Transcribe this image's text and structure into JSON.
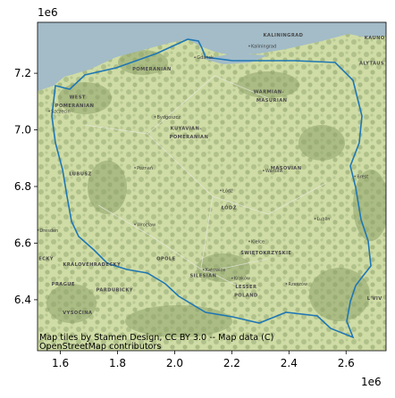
{
  "map": {
    "x_offset_label": "1e6",
    "y_offset_label": "1e6",
    "x_ticks": [
      {
        "value": 1.6,
        "label": "1.6"
      },
      {
        "value": 1.8,
        "label": "1.8"
      },
      {
        "value": 2.0,
        "label": "2.0"
      },
      {
        "value": 2.2,
        "label": "2.2"
      },
      {
        "value": 2.4,
        "label": "2.4"
      },
      {
        "value": 2.6,
        "label": "2.6"
      }
    ],
    "y_ticks": [
      {
        "value": 7.2,
        "label": "7.2"
      },
      {
        "value": 7.0,
        "label": "7.0"
      },
      {
        "value": 6.8,
        "label": "6.8"
      },
      {
        "value": 6.6,
        "label": "6.6"
      },
      {
        "value": 6.4,
        "label": "6.4"
      }
    ],
    "x_range": [
      1.52,
      2.74
    ],
    "y_range": [
      6.22,
      7.38
    ],
    "attribution_line1": "Map tiles by Stamen Design, CC BY 3.0 -- Map data (C)",
    "attribution_line2": "OpenStreetMap contributors",
    "boundary_color": "#1f77b4",
    "sea_color": "#a3bcc8",
    "land_color": "#cfdca5",
    "forest_color": "#9fb07c",
    "region_labels": [
      {
        "text": "KALININGRAD",
        "x": 2.38,
        "y": 7.33
      },
      {
        "text": "KAUNO",
        "x": 2.7,
        "y": 7.32
      },
      {
        "text": "ALYTAUS",
        "x": 2.69,
        "y": 7.23
      },
      {
        "text": "POMERANIAN",
        "x": 1.92,
        "y": 7.21
      },
      {
        "text": "WARMIAN-",
        "x": 2.33,
        "y": 7.13
      },
      {
        "text": "MASURIAN",
        "x": 2.34,
        "y": 7.1
      },
      {
        "text": "WEST",
        "x": 1.66,
        "y": 7.11
      },
      {
        "text": "POMERANIAN",
        "x": 1.65,
        "y": 7.08
      },
      {
        "text": "KUYAVIAN-",
        "x": 2.04,
        "y": 7.0
      },
      {
        "text": "POMERANIAN",
        "x": 2.05,
        "y": 6.97
      },
      {
        "text": "LUBUSZ",
        "x": 1.67,
        "y": 6.84
      },
      {
        "text": "MASOVIAN",
        "x": 2.39,
        "y": 6.86
      },
      {
        "text": "ŁÓDŹ",
        "x": 2.19,
        "y": 6.72
      },
      {
        "text": "ŚWIĘTOKRZYSKIE",
        "x": 2.32,
        "y": 6.56
      },
      {
        "text": "OPOLE",
        "x": 1.97,
        "y": 6.54
      },
      {
        "text": "KRÁLOVÉHRADECKÝ",
        "x": 1.71,
        "y": 6.52
      },
      {
        "text": "ECKÝ",
        "x": 1.55,
        "y": 6.54
      },
      {
        "text": "PRAGUE",
        "x": 1.61,
        "y": 6.45
      },
      {
        "text": "SILESIAN",
        "x": 2.1,
        "y": 6.48
      },
      {
        "text": "LESSER",
        "x": 2.25,
        "y": 6.44
      },
      {
        "text": "POLAND",
        "x": 2.25,
        "y": 6.41
      },
      {
        "text": "PARDUBICKÝ",
        "x": 1.79,
        "y": 6.43
      },
      {
        "text": "VYSOČINA",
        "x": 1.66,
        "y": 6.35
      },
      {
        "text": "L'VIV",
        "x": 2.7,
        "y": 6.4
      }
    ],
    "city_labels": [
      {
        "text": "Kaliningrad",
        "x": 2.28,
        "y": 7.29
      },
      {
        "text": "Gdańsk",
        "x": 2.09,
        "y": 7.25
      },
      {
        "text": "Szczecin",
        "x": 1.58,
        "y": 7.06
      },
      {
        "text": "Bydgoszcz",
        "x": 1.95,
        "y": 7.04
      },
      {
        "text": "Poznań",
        "x": 1.88,
        "y": 6.86
      },
      {
        "text": "Łódź",
        "x": 2.18,
        "y": 6.78
      },
      {
        "text": "Warsaw",
        "x": 2.33,
        "y": 6.85
      },
      {
        "text": "Wrocław",
        "x": 1.88,
        "y": 6.66
      },
      {
        "text": "Lublin",
        "x": 2.51,
        "y": 6.68
      },
      {
        "text": "Kraków",
        "x": 2.22,
        "y": 6.47
      },
      {
        "text": "Rzeszów",
        "x": 2.41,
        "y": 6.45
      },
      {
        "text": "Katowice",
        "x": 2.12,
        "y": 6.5
      },
      {
        "text": "Kielce",
        "x": 2.28,
        "y": 6.6
      },
      {
        "text": "Brest",
        "x": 2.65,
        "y": 6.83
      },
      {
        "text": "Dresden",
        "x": 1.54,
        "y": 6.64
      }
    ]
  }
}
